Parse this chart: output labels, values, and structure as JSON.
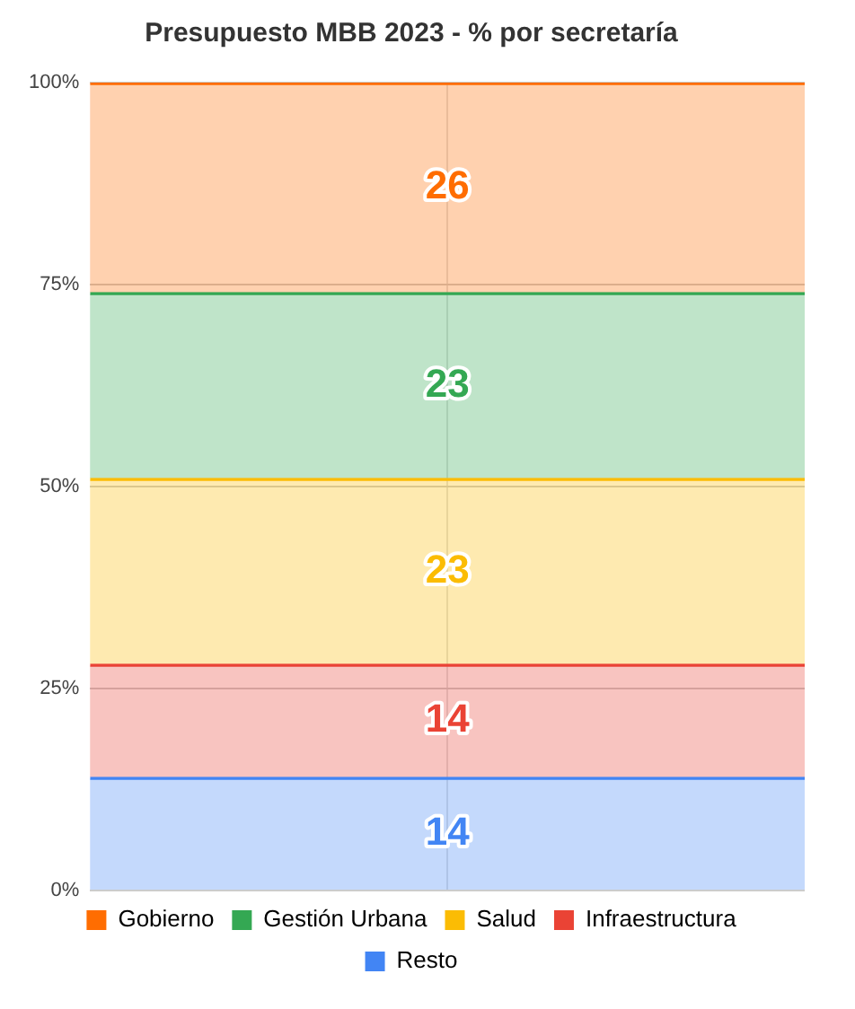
{
  "chart_data": {
    "type": "bar",
    "title": "Presupuesto MBB 2023 - % por secretaría",
    "stacked": true,
    "categories": [
      null
    ],
    "series": [
      {
        "name": "Resto",
        "color": "#4285f4",
        "values": [
          14
        ]
      },
      {
        "name": "Infraestructura",
        "color": "#ea4335",
        "values": [
          14
        ]
      },
      {
        "name": "Salud",
        "color": "#fbbc04",
        "values": [
          23
        ]
      },
      {
        "name": "Gestión Urbana",
        "color": "#34a853",
        "values": [
          23
        ]
      },
      {
        "name": "Gobierno",
        "color": "#ff6d01",
        "values": [
          26
        ]
      }
    ],
    "ylim": [
      0,
      100
    ],
    "yticks": [
      {
        "value": 0,
        "label": "0%"
      },
      {
        "value": 25,
        "label": "25%"
      },
      {
        "value": 50,
        "label": "50%"
      },
      {
        "value": 75,
        "label": "75%"
      },
      {
        "value": 100,
        "label": "100%"
      }
    ],
    "tick_labels": "y",
    "grid": true,
    "legend": "bottom",
    "data_labels": true
  }
}
